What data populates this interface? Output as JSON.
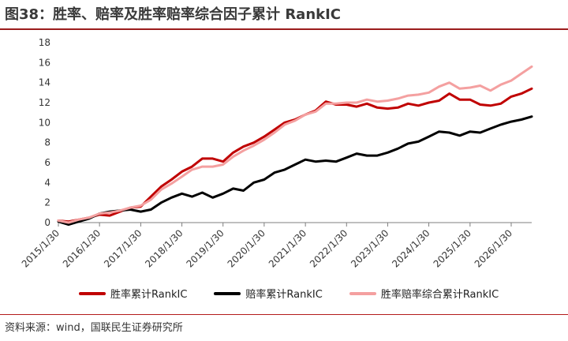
{
  "figure": {
    "title": "图38：胜率、赔率及胜率赔率综合因子累计 RankIC",
    "source": "资料来源：wind，国联民生证券研究所"
  },
  "colors": {
    "title_rule": "#9b1c1c",
    "axis": "#7f7f7f"
  },
  "chart_data": {
    "type": "line",
    "title": "",
    "xlabel": "",
    "ylabel": "",
    "x_start": "2015/1/30",
    "x_end": "2026/7/31",
    "ylim": [
      0,
      18
    ],
    "y_ticks": [
      "0",
      "2",
      "4",
      "6",
      "8",
      "10",
      "12",
      "14",
      "16",
      "18"
    ],
    "x_ticks": [
      {
        "label": "2015/1/30",
        "date": "2015/1/30"
      },
      {
        "label": "2016/1/30",
        "date": "2016/1/30"
      },
      {
        "label": "2017/1/30",
        "date": "2017/1/30"
      },
      {
        "label": "2018/1/30",
        "date": "2018/1/30"
      },
      {
        "label": "2019/1/30",
        "date": "2019/1/30"
      },
      {
        "label": "2020/1/30",
        "date": "2020/1/30"
      },
      {
        "label": "2021/1/30",
        "date": "2021/1/30"
      },
      {
        "label": "2022/1/30",
        "date": "2022/1/30"
      },
      {
        "label": "2023/1/30",
        "date": "2023/1/30"
      },
      {
        "label": "2024/1/30",
        "date": "2024/1/30"
      },
      {
        "label": "2025/1/30",
        "date": "2025/1/30"
      },
      {
        "label": "2026/1/30",
        "date": "2026/1/30"
      }
    ],
    "grid": false,
    "legend_position": "bottom",
    "series": [
      {
        "name": "胜率累计RankIC",
        "color": "#c00000",
        "points": [
          [
            "2015/1/30",
            0.2
          ],
          [
            "2015/4/30",
            0.1
          ],
          [
            "2015/7/30",
            0.3
          ],
          [
            "2015/10/30",
            0.5
          ],
          [
            "2016/1/30",
            0.8
          ],
          [
            "2016/4/30",
            0.7
          ],
          [
            "2016/7/30",
            1.1
          ],
          [
            "2016/10/30",
            1.5
          ],
          [
            "2017/1/30",
            1.6
          ],
          [
            "2017/4/30",
            2.6
          ],
          [
            "2017/7/30",
            3.6
          ],
          [
            "2017/10/30",
            4.3
          ],
          [
            "2018/1/30",
            5.1
          ],
          [
            "2018/4/30",
            5.6
          ],
          [
            "2018/7/30",
            6.4
          ],
          [
            "2018/10/30",
            6.4
          ],
          [
            "2019/1/30",
            6.1
          ],
          [
            "2019/4/30",
            7.0
          ],
          [
            "2019/7/30",
            7.6
          ],
          [
            "2019/10/30",
            8.0
          ],
          [
            "2020/1/30",
            8.6
          ],
          [
            "2020/4/30",
            9.3
          ],
          [
            "2020/7/30",
            10.0
          ],
          [
            "2020/10/30",
            10.3
          ],
          [
            "2021/1/30",
            10.8
          ],
          [
            "2021/4/30",
            11.2
          ],
          [
            "2021/7/30",
            12.1
          ],
          [
            "2021/10/30",
            11.8
          ],
          [
            "2022/1/30",
            11.8
          ],
          [
            "2022/4/30",
            11.6
          ],
          [
            "2022/7/30",
            11.9
          ],
          [
            "2022/10/30",
            11.5
          ],
          [
            "2023/1/30",
            11.4
          ],
          [
            "2023/4/30",
            11.5
          ],
          [
            "2023/7/30",
            11.9
          ],
          [
            "2023/10/30",
            11.7
          ],
          [
            "2024/1/30",
            12.0
          ],
          [
            "2024/4/30",
            12.2
          ],
          [
            "2024/7/30",
            12.9
          ],
          [
            "2024/10/30",
            12.3
          ],
          [
            "2025/1/30",
            12.3
          ],
          [
            "2025/4/30",
            11.8
          ],
          [
            "2025/7/30",
            11.7
          ],
          [
            "2025/10/30",
            11.9
          ],
          [
            "2026/1/30",
            12.6
          ],
          [
            "2026/4/30",
            12.9
          ],
          [
            "2026/7/31",
            13.4
          ]
        ]
      },
      {
        "name": "赔率累计RankIC",
        "color": "#000000",
        "points": [
          [
            "2015/1/30",
            0.1
          ],
          [
            "2015/4/30",
            -0.2
          ],
          [
            "2015/7/30",
            0.1
          ],
          [
            "2015/10/30",
            0.4
          ],
          [
            "2016/1/30",
            0.9
          ],
          [
            "2016/4/30",
            1.1
          ],
          [
            "2016/7/30",
            1.2
          ],
          [
            "2016/10/30",
            1.3
          ],
          [
            "2017/1/30",
            1.1
          ],
          [
            "2017/4/30",
            1.3
          ],
          [
            "2017/7/30",
            2.0
          ],
          [
            "2017/10/30",
            2.5
          ],
          [
            "2018/1/30",
            2.9
          ],
          [
            "2018/4/30",
            2.6
          ],
          [
            "2018/7/30",
            3.0
          ],
          [
            "2018/10/30",
            2.5
          ],
          [
            "2019/1/30",
            2.9
          ],
          [
            "2019/4/30",
            3.4
          ],
          [
            "2019/7/30",
            3.2
          ],
          [
            "2019/10/30",
            4.0
          ],
          [
            "2020/1/30",
            4.3
          ],
          [
            "2020/4/30",
            5.0
          ],
          [
            "2020/7/30",
            5.3
          ],
          [
            "2020/10/30",
            5.8
          ],
          [
            "2021/1/30",
            6.3
          ],
          [
            "2021/4/30",
            6.1
          ],
          [
            "2021/7/30",
            6.2
          ],
          [
            "2021/10/30",
            6.1
          ],
          [
            "2022/1/30",
            6.5
          ],
          [
            "2022/4/30",
            6.9
          ],
          [
            "2022/7/30",
            6.7
          ],
          [
            "2022/10/30",
            6.7
          ],
          [
            "2023/1/30",
            7.0
          ],
          [
            "2023/4/30",
            7.4
          ],
          [
            "2023/7/30",
            7.9
          ],
          [
            "2023/10/30",
            8.1
          ],
          [
            "2024/1/30",
            8.6
          ],
          [
            "2024/4/30",
            9.1
          ],
          [
            "2024/7/30",
            9.0
          ],
          [
            "2024/10/30",
            8.7
          ],
          [
            "2025/1/30",
            9.1
          ],
          [
            "2025/4/30",
            9.0
          ],
          [
            "2025/7/30",
            9.4
          ],
          [
            "2025/10/30",
            9.8
          ],
          [
            "2026/1/30",
            10.1
          ],
          [
            "2026/4/30",
            10.3
          ],
          [
            "2026/7/31",
            10.6
          ]
        ]
      },
      {
        "name": "胜率赔率综合累计RankIC",
        "color": "#f4a0a0",
        "points": [
          [
            "2015/1/30",
            0.2
          ],
          [
            "2015/4/30",
            0.0
          ],
          [
            "2015/7/30",
            0.3
          ],
          [
            "2015/10/30",
            0.5
          ],
          [
            "2016/1/30",
            0.9
          ],
          [
            "2016/4/30",
            1.0
          ],
          [
            "2016/7/30",
            1.2
          ],
          [
            "2016/10/30",
            1.5
          ],
          [
            "2017/1/30",
            1.7
          ],
          [
            "2017/4/30",
            2.3
          ],
          [
            "2017/7/30",
            3.3
          ],
          [
            "2017/10/30",
            3.9
          ],
          [
            "2018/1/30",
            4.6
          ],
          [
            "2018/4/30",
            5.3
          ],
          [
            "2018/7/30",
            5.6
          ],
          [
            "2018/10/30",
            5.6
          ],
          [
            "2019/1/30",
            5.8
          ],
          [
            "2019/4/30",
            6.6
          ],
          [
            "2019/7/30",
            7.2
          ],
          [
            "2019/10/30",
            7.7
          ],
          [
            "2020/1/30",
            8.3
          ],
          [
            "2020/4/30",
            9.0
          ],
          [
            "2020/7/30",
            9.8
          ],
          [
            "2020/10/30",
            10.2
          ],
          [
            "2021/1/30",
            10.8
          ],
          [
            "2021/4/30",
            11.1
          ],
          [
            "2021/7/30",
            11.9
          ],
          [
            "2021/10/30",
            11.9
          ],
          [
            "2022/1/30",
            12.0
          ],
          [
            "2022/4/30",
            12.0
          ],
          [
            "2022/7/30",
            12.3
          ],
          [
            "2022/10/30",
            12.1
          ],
          [
            "2023/1/30",
            12.2
          ],
          [
            "2023/4/30",
            12.4
          ],
          [
            "2023/7/30",
            12.7
          ],
          [
            "2023/10/30",
            12.8
          ],
          [
            "2024/1/30",
            13.0
          ],
          [
            "2024/4/30",
            13.6
          ],
          [
            "2024/7/30",
            14.0
          ],
          [
            "2024/10/30",
            13.4
          ],
          [
            "2025/1/30",
            13.5
          ],
          [
            "2025/4/30",
            13.7
          ],
          [
            "2025/7/30",
            13.2
          ],
          [
            "2025/10/30",
            13.8
          ],
          [
            "2026/1/30",
            14.2
          ],
          [
            "2026/4/30",
            14.9
          ],
          [
            "2026/7/31",
            15.6
          ]
        ]
      }
    ]
  }
}
